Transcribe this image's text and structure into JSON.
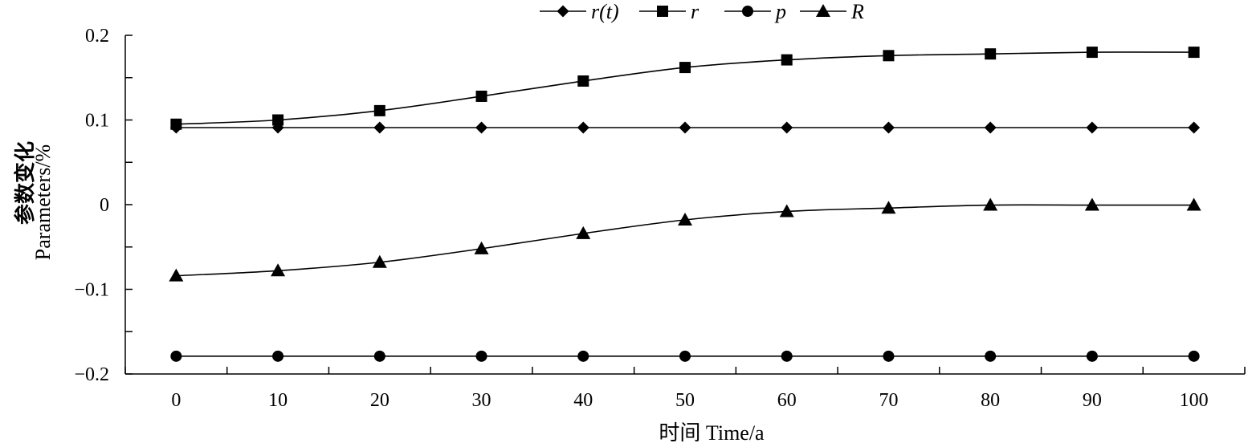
{
  "chart_data": {
    "type": "line",
    "x": [
      0,
      10,
      20,
      30,
      40,
      50,
      60,
      70,
      80,
      90,
      100
    ],
    "x_ticks": [
      "0",
      "10",
      "20",
      "30",
      "40",
      "50",
      "60",
      "70",
      "80",
      "90",
      "100"
    ],
    "xlim": [
      -5,
      105
    ],
    "ylim": [
      -0.2,
      0.2
    ],
    "y_ticks": [
      0.2,
      0.1,
      0,
      -0.1,
      -0.2
    ],
    "y_tick_labels": [
      "0.2",
      "0.1",
      "0",
      "−0.1",
      "−0.2"
    ],
    "xlabel": "时间 Time/a",
    "ylabel_cn": "参数变化",
    "ylabel_en": "Parameters/%",
    "legend_position": "top-center",
    "grid": false,
    "series": [
      {
        "name": "r(t)",
        "marker": "diamond",
        "values": [
          0.091,
          0.091,
          0.091,
          0.091,
          0.091,
          0.091,
          0.091,
          0.091,
          0.091,
          0.091,
          0.091
        ]
      },
      {
        "name": "r",
        "marker": "square",
        "values": [
          0.095,
          0.1,
          0.111,
          0.128,
          0.146,
          0.162,
          0.171,
          0.176,
          0.178,
          0.18,
          0.18
        ]
      },
      {
        "name": "p",
        "marker": "circle",
        "values": [
          -0.179,
          -0.179,
          -0.179,
          -0.179,
          -0.179,
          -0.179,
          -0.179,
          -0.179,
          -0.179,
          -0.179,
          -0.179
        ]
      },
      {
        "name": "R",
        "marker": "triangle",
        "values": [
          -0.084,
          -0.078,
          -0.068,
          -0.052,
          -0.034,
          -0.018,
          -0.008,
          -0.004,
          -0.0005,
          -0.0005,
          -0.0005
        ]
      }
    ]
  }
}
